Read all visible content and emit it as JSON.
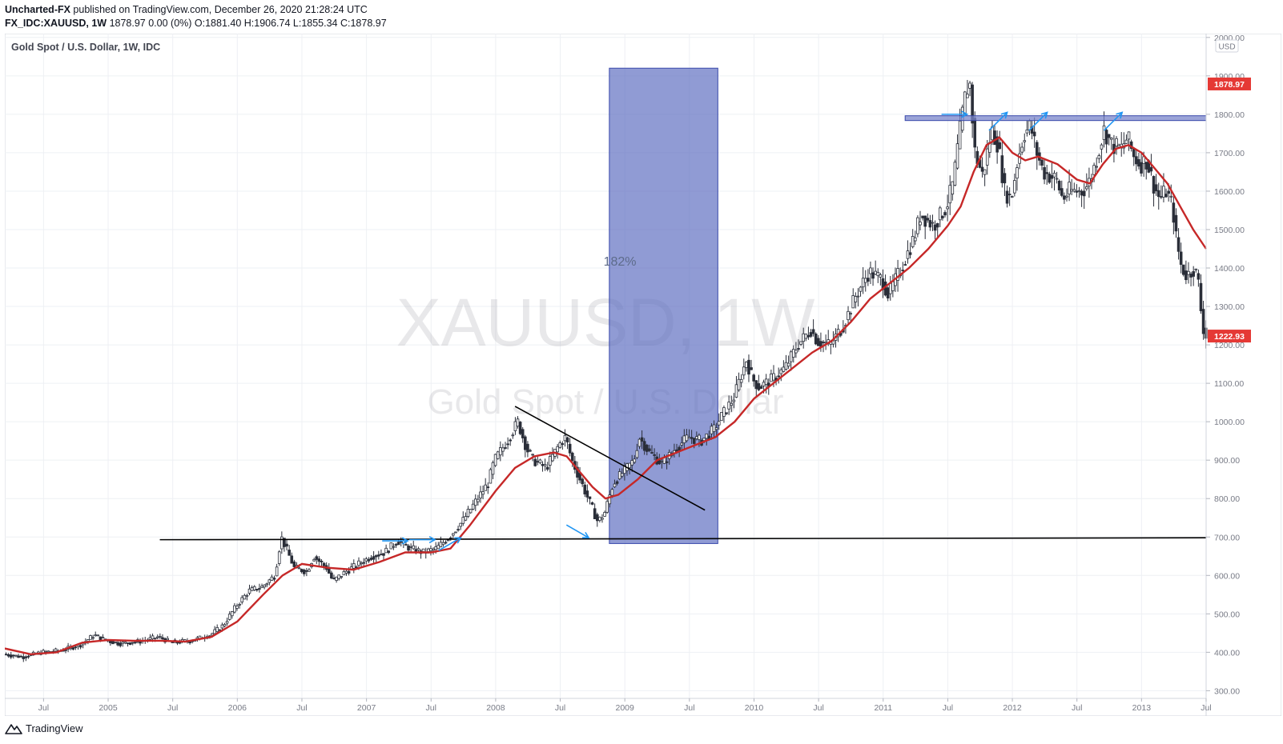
{
  "header": {
    "publisher": "Uncharted-FX",
    "published_text": " published on TradingView.com, December 26, 2020 21:28:24 UTC",
    "symbol": "FX_IDC:XAUUSD, 1W",
    "ohlc_text": " 1878.97 0.00 (0%) O:1881.40 H:1906.74 L:1855.34 C:1878.97"
  },
  "legend": {
    "title": "Gold Spot / U.S. Dollar, 1W, IDC"
  },
  "watermark": {
    "symbol": "XAUUSD, 1W",
    "name": "Gold Spot / U.S. Dollar"
  },
  "footer": {
    "brand": "TradingView"
  },
  "colors": {
    "up": "#26a69a",
    "down": "#ef5350",
    "candle": "#2a2e39",
    "ma": "#c62828",
    "box": "#5c6bc0",
    "arrow": "#2196f3",
    "price_tag": "#e53935",
    "grid": "#eef0f4"
  },
  "chart_data": {
    "type": "line",
    "title": "Gold Spot / U.S. Dollar, 1W, IDC",
    "currency_label": "USD",
    "ylim": [
      280,
      2010
    ],
    "y_ticks": [
      "2000.00",
      "1900.00",
      "1800.00",
      "1700.00",
      "1600.00",
      "1500.00",
      "1400.00",
      "1300.00",
      "1200.00",
      "1100.00",
      "1000.00",
      "900.00",
      "800.00",
      "700.00",
      "600.00",
      "500.00",
      "400.00",
      "300.00"
    ],
    "x_ticks": [
      "Jul",
      "2005",
      "Jul",
      "2006",
      "Jul",
      "2007",
      "Jul",
      "2008",
      "Jul",
      "2009",
      "Jul",
      "2010",
      "Jul",
      "2011",
      "Jul",
      "2012",
      "Jul",
      "2013",
      "Jul"
    ],
    "x_tick_dates": [
      2004.5,
      2005.0,
      2005.5,
      2006.0,
      2006.5,
      2007.0,
      2007.5,
      2008.0,
      2008.5,
      2009.0,
      2009.5,
      2010.0,
      2010.5,
      2011.0,
      2011.5,
      2012.0,
      2012.5,
      2013.0,
      2013.5
    ],
    "xlim": [
      2004.2,
      2013.5
    ],
    "last_price_label": "1878.97",
    "current_price_label": "1222.93",
    "last_price": 1878.97,
    "current_price": 1222.93,
    "price_path": [
      [
        2004.2,
        395
      ],
      [
        2004.35,
        388
      ],
      [
        2004.5,
        400
      ],
      [
        2004.65,
        405
      ],
      [
        2004.8,
        420
      ],
      [
        2004.9,
        445
      ],
      [
        2005.0,
        430
      ],
      [
        2005.1,
        423
      ],
      [
        2005.25,
        428
      ],
      [
        2005.4,
        440
      ],
      [
        2005.5,
        425
      ],
      [
        2005.65,
        430
      ],
      [
        2005.8,
        445
      ],
      [
        2005.9,
        470
      ],
      [
        2006.0,
        520
      ],
      [
        2006.1,
        560
      ],
      [
        2006.2,
        570
      ],
      [
        2006.3,
        600
      ],
      [
        2006.35,
        700
      ],
      [
        2006.4,
        660
      ],
      [
        2006.45,
        620
      ],
      [
        2006.55,
        610
      ],
      [
        2006.6,
        650
      ],
      [
        2006.7,
        620
      ],
      [
        2006.75,
        585
      ],
      [
        2006.85,
        610
      ],
      [
        2006.95,
        630
      ],
      [
        2007.05,
        650
      ],
      [
        2007.15,
        660
      ],
      [
        2007.25,
        690
      ],
      [
        2007.35,
        670
      ],
      [
        2007.45,
        660
      ],
      [
        2007.55,
        670
      ],
      [
        2007.65,
        700
      ],
      [
        2007.75,
        740
      ],
      [
        2007.85,
        790
      ],
      [
        2007.95,
        840
      ],
      [
        2008.0,
        900
      ],
      [
        2008.1,
        950
      ],
      [
        2008.18,
        1000
      ],
      [
        2008.25,
        930
      ],
      [
        2008.3,
        900
      ],
      [
        2008.4,
        880
      ],
      [
        2008.5,
        940
      ],
      [
        2008.55,
        960
      ],
      [
        2008.6,
        900
      ],
      [
        2008.65,
        860
      ],
      [
        2008.75,
        780
      ],
      [
        2008.8,
        740
      ],
      [
        2008.85,
        760
      ],
      [
        2008.92,
        840
      ],
      [
        2009.0,
        870
      ],
      [
        2009.08,
        900
      ],
      [
        2009.12,
        960
      ],
      [
        2009.2,
        920
      ],
      [
        2009.3,
        890
      ],
      [
        2009.4,
        930
      ],
      [
        2009.5,
        960
      ],
      [
        2009.6,
        950
      ],
      [
        2009.7,
        980
      ],
      [
        2009.75,
        1010
      ],
      [
        2009.85,
        1060
      ],
      [
        2009.95,
        1160
      ],
      [
        2010.0,
        1110
      ],
      [
        2010.05,
        1090
      ],
      [
        2010.15,
        1110
      ],
      [
        2010.25,
        1140
      ],
      [
        2010.35,
        1200
      ],
      [
        2010.45,
        1240
      ],
      [
        2010.5,
        1210
      ],
      [
        2010.6,
        1200
      ],
      [
        2010.7,
        1250
      ],
      [
        2010.8,
        1330
      ],
      [
        2010.9,
        1390
      ],
      [
        2011.0,
        1370
      ],
      [
        2011.05,
        1330
      ],
      [
        2011.15,
        1400
      ],
      [
        2011.25,
        1480
      ],
      [
        2011.3,
        1540
      ],
      [
        2011.4,
        1510
      ],
      [
        2011.5,
        1560
      ],
      [
        2011.55,
        1620
      ],
      [
        2011.6,
        1750
      ],
      [
        2011.65,
        1860
      ],
      [
        2011.68,
        1880
      ],
      [
        2011.72,
        1700
      ],
      [
        2011.78,
        1640
      ],
      [
        2011.85,
        1760
      ],
      [
        2011.9,
        1720
      ],
      [
        2011.95,
        1600
      ],
      [
        2012.0,
        1580
      ],
      [
        2012.05,
        1680
      ],
      [
        2012.1,
        1750
      ],
      [
        2012.15,
        1770
      ],
      [
        2012.2,
        1700
      ],
      [
        2012.25,
        1650
      ],
      [
        2012.35,
        1630
      ],
      [
        2012.4,
        1580
      ],
      [
        2012.45,
        1600
      ],
      [
        2012.55,
        1600
      ],
      [
        2012.6,
        1620
      ],
      [
        2012.65,
        1670
      ],
      [
        2012.72,
        1760
      ],
      [
        2012.78,
        1720
      ],
      [
        2012.85,
        1710
      ],
      [
        2012.9,
        1740
      ],
      [
        2012.95,
        1690
      ],
      [
        2013.0,
        1670
      ],
      [
        2013.05,
        1680
      ],
      [
        2013.1,
        1620
      ],
      [
        2013.15,
        1580
      ],
      [
        2013.2,
        1600
      ],
      [
        2013.25,
        1560
      ],
      [
        2013.28,
        1470
      ],
      [
        2013.32,
        1400
      ],
      [
        2013.36,
        1380
      ],
      [
        2013.42,
        1400
      ],
      [
        2013.45,
        1360
      ],
      [
        2013.47,
        1290
      ],
      [
        2013.49,
        1240
      ],
      [
        2013.5,
        1223
      ]
    ],
    "moving_average": [
      [
        2004.2,
        410
      ],
      [
        2004.4,
        395
      ],
      [
        2004.6,
        400
      ],
      [
        2004.8,
        425
      ],
      [
        2005.0,
        432
      ],
      [
        2005.2,
        430
      ],
      [
        2005.4,
        430
      ],
      [
        2005.6,
        428
      ],
      [
        2005.8,
        440
      ],
      [
        2006.0,
        480
      ],
      [
        2006.2,
        550
      ],
      [
        2006.35,
        600
      ],
      [
        2006.5,
        630
      ],
      [
        2006.7,
        620
      ],
      [
        2006.9,
        615
      ],
      [
        2007.1,
        635
      ],
      [
        2007.3,
        660
      ],
      [
        2007.5,
        660
      ],
      [
        2007.65,
        670
      ],
      [
        2007.8,
        730
      ],
      [
        2008.0,
        820
      ],
      [
        2008.15,
        880
      ],
      [
        2008.3,
        910
      ],
      [
        2008.45,
        920
      ],
      [
        2008.55,
        910
      ],
      [
        2008.65,
        870
      ],
      [
        2008.75,
        830
      ],
      [
        2008.85,
        800
      ],
      [
        2008.95,
        810
      ],
      [
        2009.1,
        850
      ],
      [
        2009.25,
        900
      ],
      [
        2009.4,
        920
      ],
      [
        2009.55,
        940
      ],
      [
        2009.7,
        960
      ],
      [
        2009.85,
        1000
      ],
      [
        2010.0,
        1060
      ],
      [
        2010.15,
        1100
      ],
      [
        2010.3,
        1140
      ],
      [
        2010.45,
        1180
      ],
      [
        2010.6,
        1210
      ],
      [
        2010.75,
        1260
      ],
      [
        2010.9,
        1320
      ],
      [
        2011.05,
        1360
      ],
      [
        2011.2,
        1400
      ],
      [
        2011.35,
        1450
      ],
      [
        2011.5,
        1510
      ],
      [
        2011.6,
        1560
      ],
      [
        2011.7,
        1650
      ],
      [
        2011.8,
        1720
      ],
      [
        2011.9,
        1740
      ],
      [
        2012.0,
        1700
      ],
      [
        2012.1,
        1680
      ],
      [
        2012.2,
        1690
      ],
      [
        2012.35,
        1670
      ],
      [
        2012.5,
        1630
      ],
      [
        2012.6,
        1620
      ],
      [
        2012.7,
        1670
      ],
      [
        2012.8,
        1710
      ],
      [
        2012.9,
        1720
      ],
      [
        2013.0,
        1700
      ],
      [
        2013.1,
        1660
      ],
      [
        2013.2,
        1620
      ],
      [
        2013.3,
        1560
      ],
      [
        2013.4,
        1500
      ],
      [
        2013.5,
        1450
      ]
    ],
    "annotations": {
      "percent_label": "182%",
      "measure_box": {
        "x0": 2008.88,
        "x1": 2009.72,
        "y0": 683,
        "y1": 1920
      },
      "resistance_zone": {
        "x0": 2011.17,
        "x1": 2013.5,
        "y": 1790
      },
      "support_line": [
        [
          2005.4,
          693
        ],
        [
          2013.5,
          698
        ]
      ],
      "trend_line": [
        [
          2008.15,
          1040
        ],
        [
          2009.62,
          770
        ]
      ],
      "arrows": [
        {
          "tip": [
            2007.32,
            690
          ],
          "angle": 180
        },
        {
          "tip": [
            2007.53,
            693
          ],
          "angle": 180
        },
        {
          "tip": [
            2007.73,
            698
          ],
          "angle": 210
        },
        {
          "tip": [
            2008.72,
            698
          ],
          "angle": 150
        },
        {
          "tip": [
            2011.65,
            1800
          ],
          "angle": 180
        },
        {
          "tip": [
            2011.96,
            1805
          ],
          "angle": 225
        },
        {
          "tip": [
            2012.27,
            1805
          ],
          "angle": 225
        },
        {
          "tip": [
            2012.85,
            1805
          ],
          "angle": 225
        }
      ]
    }
  }
}
